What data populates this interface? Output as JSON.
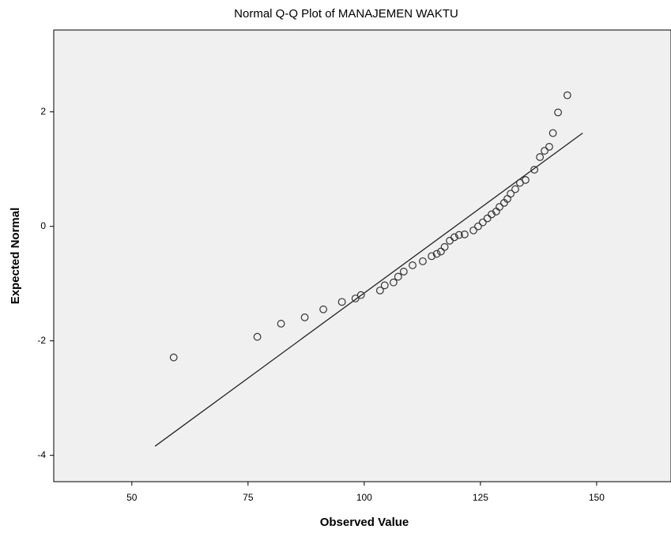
{
  "chart_data": {
    "type": "scatter",
    "title": "Normal Q-Q Plot of MANAJEMEN WAKTU",
    "xlabel": "Observed Value",
    "ylabel": "Expected Normal",
    "x": [
      59,
      77,
      82.1,
      87.2,
      91.2,
      95.2,
      98.1,
      99.3,
      103.4,
      104.4,
      106.3,
      107.3,
      108.5,
      110.4,
      112.6,
      114.5,
      115.6,
      116.5,
      117.3,
      118.4,
      119.4,
      120.4,
      121.6,
      123.5,
      124.5,
      125.5,
      126.5,
      127.4,
      128.4,
      129.1,
      130.1,
      130.8,
      131.5,
      132.5,
      133.5,
      134.7,
      136.6,
      137.8,
      138.8,
      139.8,
      140.6,
      141.7,
      143.7
    ],
    "values": [
      -2.29,
      -1.93,
      -1.7,
      -1.59,
      -1.45,
      -1.32,
      -1.26,
      -1.2,
      -1.12,
      -1.03,
      -0.98,
      -0.88,
      -0.79,
      -0.68,
      -0.61,
      -0.52,
      -0.48,
      -0.44,
      -0.36,
      -0.25,
      -0.19,
      -0.15,
      -0.14,
      -0.07,
      0,
      0.07,
      0.14,
      0.21,
      0.26,
      0.34,
      0.41,
      0.48,
      0.57,
      0.65,
      0.76,
      0.81,
      0.99,
      1.21,
      1.32,
      1.39,
      1.63,
      1.99,
      2.29
    ],
    "reference_line": {
      "x": [
        55,
        147
      ],
      "y": [
        -3.84,
        1.63
      ]
    },
    "marker_color": "#333333",
    "line_color": "#222222",
    "xlim": [
      33.2,
      166
    ],
    "xticks": [
      50,
      75,
      100,
      125,
      150
    ],
    "ylim": [
      -4.46,
      3.43
    ],
    "yticks": [
      -4,
      -2,
      0,
      2
    ]
  }
}
